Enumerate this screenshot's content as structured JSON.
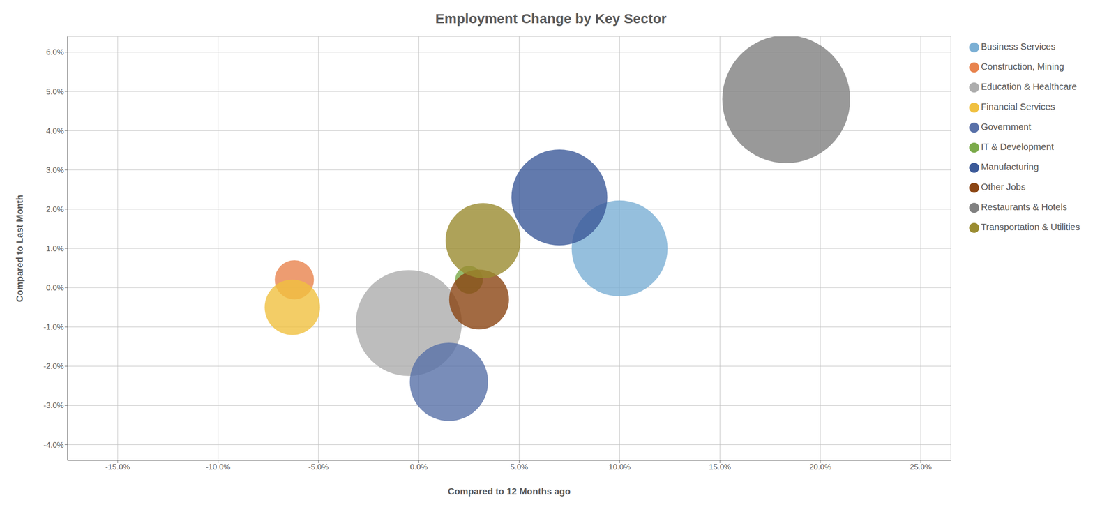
{
  "chart_data": {
    "type": "scatter",
    "title": "Employment Change by Key Sector",
    "xlabel": "Compared to 12 Months ago",
    "ylabel": "Compared to Last Month",
    "xlim": [
      -0.175,
      0.265
    ],
    "ylim": [
      -0.044,
      0.064
    ],
    "xticks": [
      {
        "value": -0.15,
        "label": "-15.0%"
      },
      {
        "value": -0.1,
        "label": "-10.0%"
      },
      {
        "value": -0.05,
        "label": "-5.0%"
      },
      {
        "value": 0.0,
        "label": "0.0%"
      },
      {
        "value": 0.05,
        "label": "5.0%"
      },
      {
        "value": 0.1,
        "label": "10.0%"
      },
      {
        "value": 0.15,
        "label": "15.0%"
      },
      {
        "value": 0.2,
        "label": "20.0%"
      },
      {
        "value": 0.25,
        "label": "25.0%"
      }
    ],
    "yticks": [
      {
        "value": -0.04,
        "label": "-4.0%"
      },
      {
        "value": -0.03,
        "label": "-3.0%"
      },
      {
        "value": -0.02,
        "label": "-2.0%"
      },
      {
        "value": -0.01,
        "label": "-1.0%"
      },
      {
        "value": 0.0,
        "label": "0.0%"
      },
      {
        "value": 0.01,
        "label": "1.0%"
      },
      {
        "value": 0.02,
        "label": "2.0%"
      },
      {
        "value": 0.03,
        "label": "3.0%"
      },
      {
        "value": 0.04,
        "label": "4.0%"
      },
      {
        "value": 0.05,
        "label": "5.0%"
      },
      {
        "value": 0.06,
        "label": "6.0%"
      }
    ],
    "grid": true,
    "legend": "upper right",
    "series": [
      {
        "name": "Business Services",
        "color": "#7BAFD4",
        "x": [
          0.1
        ],
        "y": [
          0.01
        ],
        "size": [
          18000
        ]
      },
      {
        "name": "Construction, Mining",
        "color": "#E8834E",
        "x": [
          -0.062
        ],
        "y": [
          0.002
        ],
        "size": [
          3000
        ]
      },
      {
        "name": "Education & Healthcare",
        "color": "#ADADAD",
        "x": [
          -0.005
        ],
        "y": [
          -0.009
        ],
        "size": [
          22000
        ]
      },
      {
        "name": "Financial Services",
        "color": "#F0C040",
        "x": [
          -0.063
        ],
        "y": [
          -0.005
        ],
        "size": [
          6000
        ]
      },
      {
        "name": "Government",
        "color": "#5870A8",
        "x": [
          0.015
        ],
        "y": [
          -0.024
        ],
        "size": [
          12000
        ]
      },
      {
        "name": "IT & Development",
        "color": "#7BAA4A",
        "x": [
          0.025
        ],
        "y": [
          0.002
        ],
        "size": [
          1500
        ]
      },
      {
        "name": "Manufacturing",
        "color": "#3B5998",
        "x": [
          0.07
        ],
        "y": [
          0.023
        ],
        "size": [
          18000
        ]
      },
      {
        "name": "Other Jobs",
        "color": "#8B4513",
        "x": [
          0.03
        ],
        "y": [
          -0.003
        ],
        "size": [
          7000
        ]
      },
      {
        "name": "Restaurants & Hotels",
        "color": "#808080",
        "x": [
          0.183
        ],
        "y": [
          0.048
        ],
        "size": [
          32000
        ]
      },
      {
        "name": "Transportation & Utilities",
        "color": "#9A8B30",
        "x": [
          0.032
        ],
        "y": [
          0.012
        ],
        "size": [
          11000
        ]
      }
    ]
  }
}
